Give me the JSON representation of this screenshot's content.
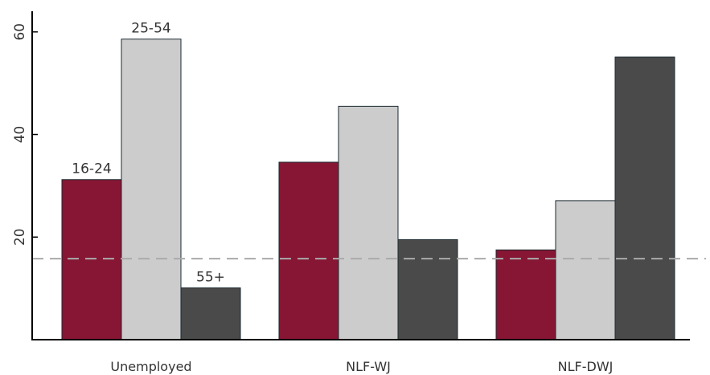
{
  "chart_data": {
    "type": "bar",
    "categories": [
      "Unemployed",
      "NLF-WJ",
      "NLF-DWJ"
    ],
    "series": [
      {
        "name": "16-24",
        "color": "#861634",
        "values": [
          31.2,
          34.6,
          17.5
        ]
      },
      {
        "name": "25-54",
        "color": "#cccccc",
        "values": [
          58.6,
          45.5,
          27.1
        ]
      },
      {
        "name": "55+",
        "color": "#4a4a4a",
        "values": [
          10.1,
          19.5,
          55.1
        ]
      }
    ],
    "yticks": [
      20,
      40,
      60
    ],
    "ylim": [
      0,
      63
    ],
    "reference_line": {
      "value": 15.8,
      "color": "#aaaaaa",
      "style": "dashed"
    },
    "legend": "inline labels above first group",
    "grid": false
  }
}
